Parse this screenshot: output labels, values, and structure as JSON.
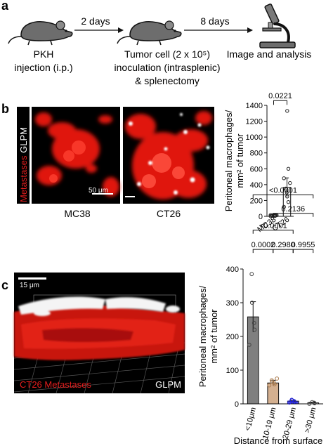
{
  "panels": {
    "a": {
      "label": "a",
      "step1": "2 days",
      "step2": "8 days",
      "caption_left_1": "PKH",
      "caption_left_2": "injection (i.p.)",
      "caption_mid_1": "Tumor cell (2 x 10⁵)",
      "caption_mid_2": "inoculation (intrasplenic)",
      "caption_mid_3": "& splenectomy",
      "caption_right": "Image and analysis",
      "icons": [
        "mouse-icon",
        "mouse-icon",
        "microscope-icon"
      ]
    },
    "b": {
      "label": "b",
      "side_label_red": "Metastases",
      "side_label_white": "GLPM",
      "scalebar": "50 μm",
      "image_labels": [
        "MC38",
        "CT26"
      ]
    },
    "c": {
      "label": "c",
      "scalebar": "15 μm",
      "caption_red": "CT26 Metastases",
      "caption_white": "GLPM"
    }
  },
  "chart_data": [
    {
      "type": "bar",
      "ylabel_lines": [
        "Peritoneal macrophages/",
        "mm² of tumor"
      ],
      "ylim": [
        0,
        1400
      ],
      "yticks": [
        0,
        200,
        400,
        600,
        800,
        1000,
        1200,
        1400
      ],
      "categories": [
        "MC38",
        "CT26"
      ],
      "values": [
        20,
        365
      ],
      "errors": [
        10,
        120
      ],
      "colors": [
        "#ffffff",
        "#ffffff"
      ],
      "points": [
        [
          3,
          5,
          8,
          10,
          12,
          14,
          16,
          18
        ],
        [
          120,
          180,
          250,
          300,
          350,
          420,
          480,
          600,
          1330
        ]
      ],
      "significance": [
        {
          "from": 0,
          "to": 1,
          "label": "0.0221",
          "y": 1460
        }
      ]
    },
    {
      "type": "bar",
      "ylabel_lines": [
        "Peritoneal macrophages/",
        "mm² of tumor"
      ],
      "xlabel": "Distance from surface",
      "ylim": [
        0,
        400
      ],
      "yticks": [
        0,
        100,
        200,
        300,
        400
      ],
      "categories": [
        "<10μm",
        "10-19 μm",
        "20-29 μm",
        ">30 μm"
      ],
      "values": [
        258,
        62,
        8,
        3
      ],
      "errors": [
        45,
        8,
        2,
        2
      ],
      "colors": [
        "#7f7f7f",
        "#d4b090",
        "#4a4ae8",
        "#c8c8c8"
      ],
      "point_colors": [
        "#444444",
        "#a97a4d",
        "#2020d0",
        "#444444"
      ],
      "points": [
        [
          175,
          220,
          240,
          300,
          385
        ],
        [
          55,
          58,
          62,
          66,
          70,
          75
        ],
        [
          4,
          6,
          8,
          10,
          12
        ],
        [
          0,
          2,
          3,
          5
        ]
      ],
      "significance": [
        {
          "from": 0,
          "to": 1,
          "label": "0.0002",
          "y": 458
        },
        {
          "from": 1,
          "to": 2,
          "label": "0.2980",
          "y": 458
        },
        {
          "from": 2,
          "to": 3,
          "label": "0.9955",
          "y": 458
        },
        {
          "from": 0,
          "to": 2,
          "label": "<0.0001",
          "y": 515
        },
        {
          "from": 1,
          "to": 3,
          "label": "0.2136",
          "y": 565
        },
        {
          "from": 0,
          "to": 3,
          "label": "<0.0001",
          "y": 620
        }
      ]
    }
  ]
}
